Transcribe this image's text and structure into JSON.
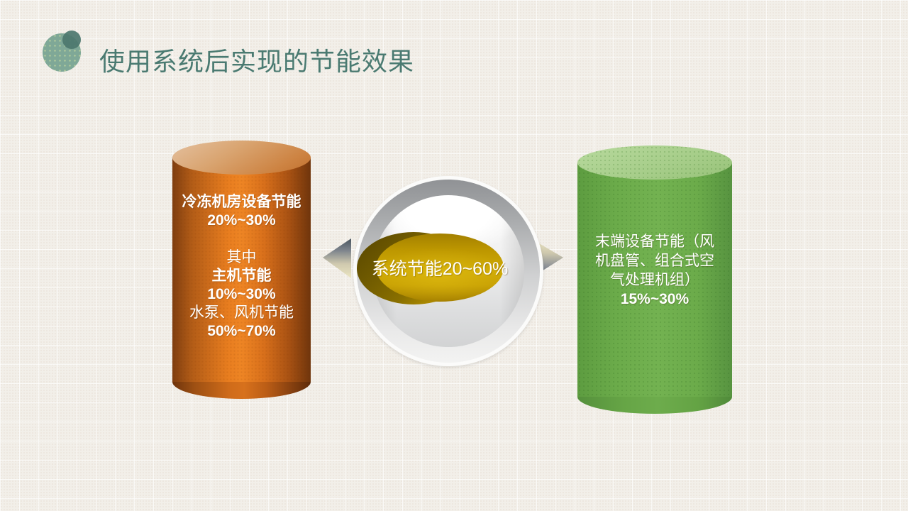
{
  "title": {
    "text": "使用系统后实现的节能效果",
    "color": "#4a7a71"
  },
  "decor": {
    "icon": "overlapping-circles",
    "big_circle_color": "#7fa897",
    "small_circle_color": "#4c776e"
  },
  "diagram": {
    "left_cylinder": {
      "shape": "cylinder",
      "fill_color": "#e87d1f",
      "text_color": "#ffffff",
      "lines": [
        {
          "text": "冷冻机房设备节能",
          "bold": true
        },
        {
          "text": "20%~30%",
          "bold": true
        },
        {
          "text": "",
          "bold": false
        },
        {
          "text": "其中",
          "bold": false
        },
        {
          "text": "主机节能",
          "bold": true
        },
        {
          "text": "10%~30%",
          "bold": true
        },
        {
          "text": "水泵、风机节能",
          "bold": false
        },
        {
          "text": "50%~70%",
          "bold": true
        }
      ]
    },
    "center_sphere": {
      "shape": "sphere-with-ellipse-badge",
      "sphere_color": "#d2d3d4",
      "badge_color": "#cfaa06",
      "label": "系统节能20~60%",
      "text_color": "#ffffff",
      "arrows": [
        "left",
        "right"
      ]
    },
    "right_cylinder": {
      "shape": "cylinder",
      "fill_color": "#6bab4a",
      "text_color": "#ffffff",
      "lines": [
        {
          "text": "末端设备节能（风",
          "bold": false
        },
        {
          "text": "机盘管、组合式空",
          "bold": false
        },
        {
          "text": "气处理机组）",
          "bold": false
        },
        {
          "text": "15%~30%",
          "bold": true
        }
      ]
    }
  }
}
